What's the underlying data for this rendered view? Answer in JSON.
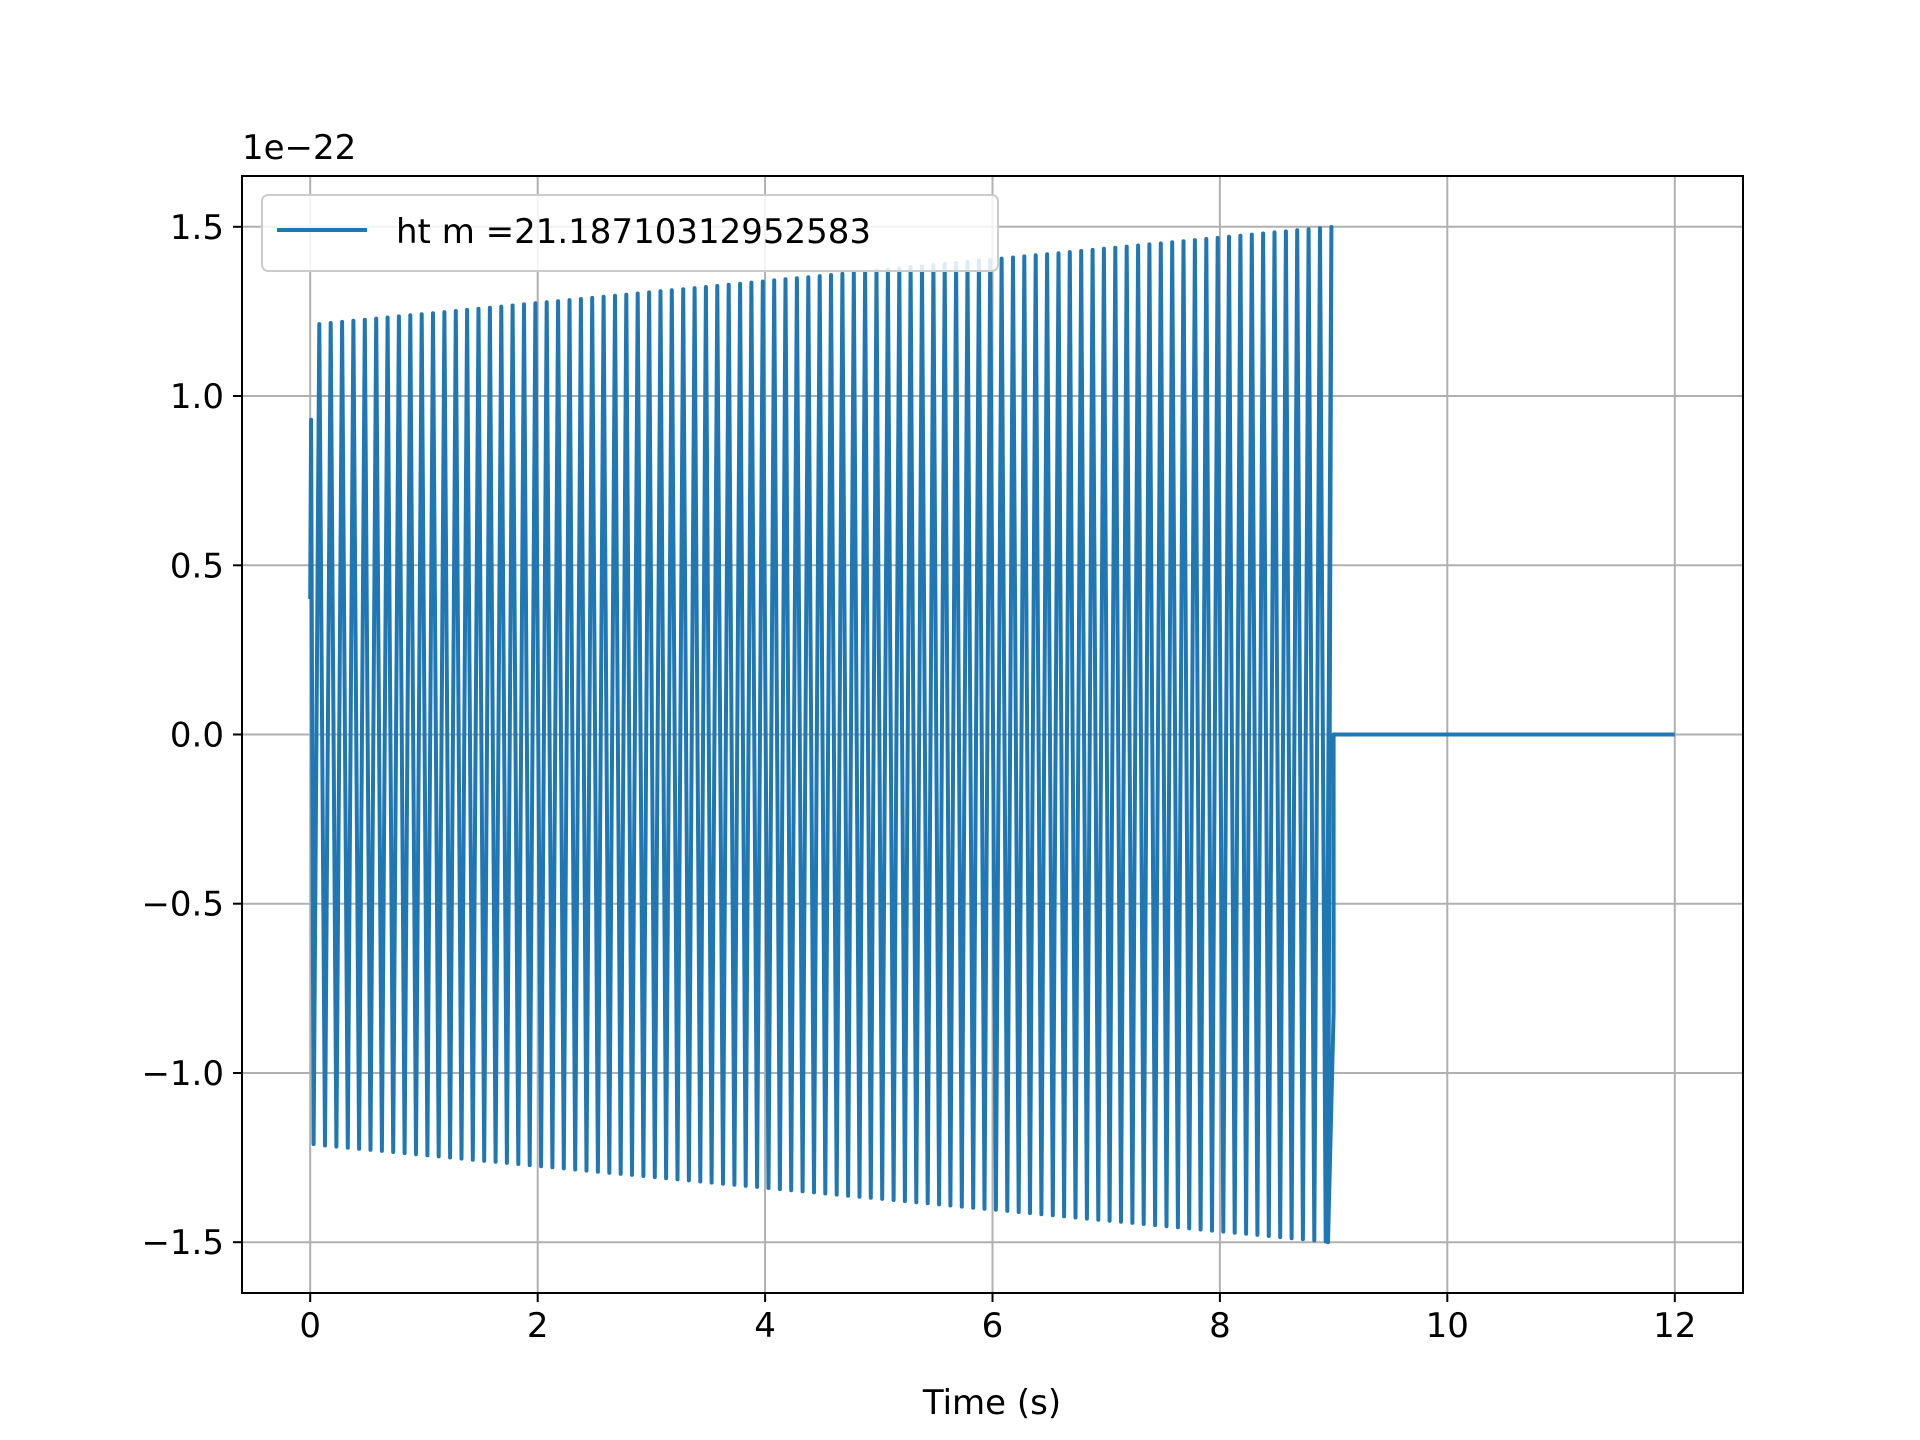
{
  "chart_data": {
    "type": "line",
    "title": "",
    "xlabel": "Time (s)",
    "ylabel": "",
    "y_offset_label": "1e−22",
    "xlim": [
      -0.6,
      12.6
    ],
    "ylim": [
      -1.65,
      1.65
    ],
    "x_ticks": [
      0,
      2,
      4,
      6,
      8,
      10,
      12
    ],
    "x_tick_labels": [
      "0",
      "2",
      "4",
      "6",
      "8",
      "10",
      "12"
    ],
    "y_ticks": [
      -1.5,
      -1.0,
      -0.5,
      0.0,
      0.5,
      1.0,
      1.5
    ],
    "y_tick_labels": [
      "−1.5",
      "−1.0",
      "−0.5",
      "0.0",
      "0.5",
      "1.0",
      "1.5"
    ],
    "grid": true,
    "legend_position": "upper-left",
    "series": [
      {
        "name": "ht m =21.18710312952583",
        "color": "#1f77b4",
        "signal_start": 0.0,
        "signal_end": 9.0,
        "data_end": 12.0,
        "cycles": 90,
        "start_amplitude": 1.21,
        "end_amplitude": 1.5,
        "first_value": 0.4,
        "first_peak": 0.93,
        "last_value": -0.82
      }
    ]
  }
}
